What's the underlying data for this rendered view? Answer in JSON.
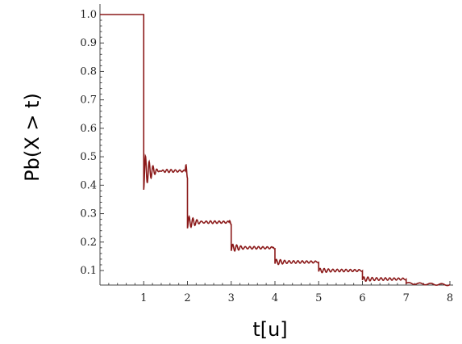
{
  "chart_data": {
    "type": "line",
    "title": "",
    "xlabel": "t[u]",
    "ylabel": "Pb(X > t)",
    "xlim": [
      0,
      8
    ],
    "ylim": [
      0.05,
      1.05
    ],
    "x_ticks": [
      "1",
      "2",
      "3",
      "4",
      "5",
      "6",
      "7",
      "8"
    ],
    "y_ticks": [
      "0.1",
      "0.2",
      "0.3",
      "0.4",
      "0.5",
      "0.6",
      "0.7",
      "0.8",
      "0.9",
      "1.0"
    ],
    "grid": false,
    "legend": "none",
    "colors": {
      "line": "#8b1a1a",
      "axis": "#444444"
    },
    "series": [
      {
        "x": [
          0,
          0.5,
          0.95,
          1,
          1.5,
          1.95,
          2,
          2.5,
          2.95,
          3,
          3.5,
          3.95,
          4,
          4.5,
          4.95,
          5,
          5.5,
          5.95,
          6,
          6.5,
          6.95,
          7,
          7.5,
          7.95,
          8
        ],
        "values": [
          1.0,
          1.0,
          1.0,
          0.45,
          0.45,
          0.45,
          0.27,
          0.27,
          0.27,
          0.18,
          0.18,
          0.18,
          0.13,
          0.13,
          0.13,
          0.1,
          0.1,
          0.1,
          0.07,
          0.07,
          0.07,
          0.055,
          0.055,
          0.05,
          0.05
        ]
      }
    ]
  }
}
